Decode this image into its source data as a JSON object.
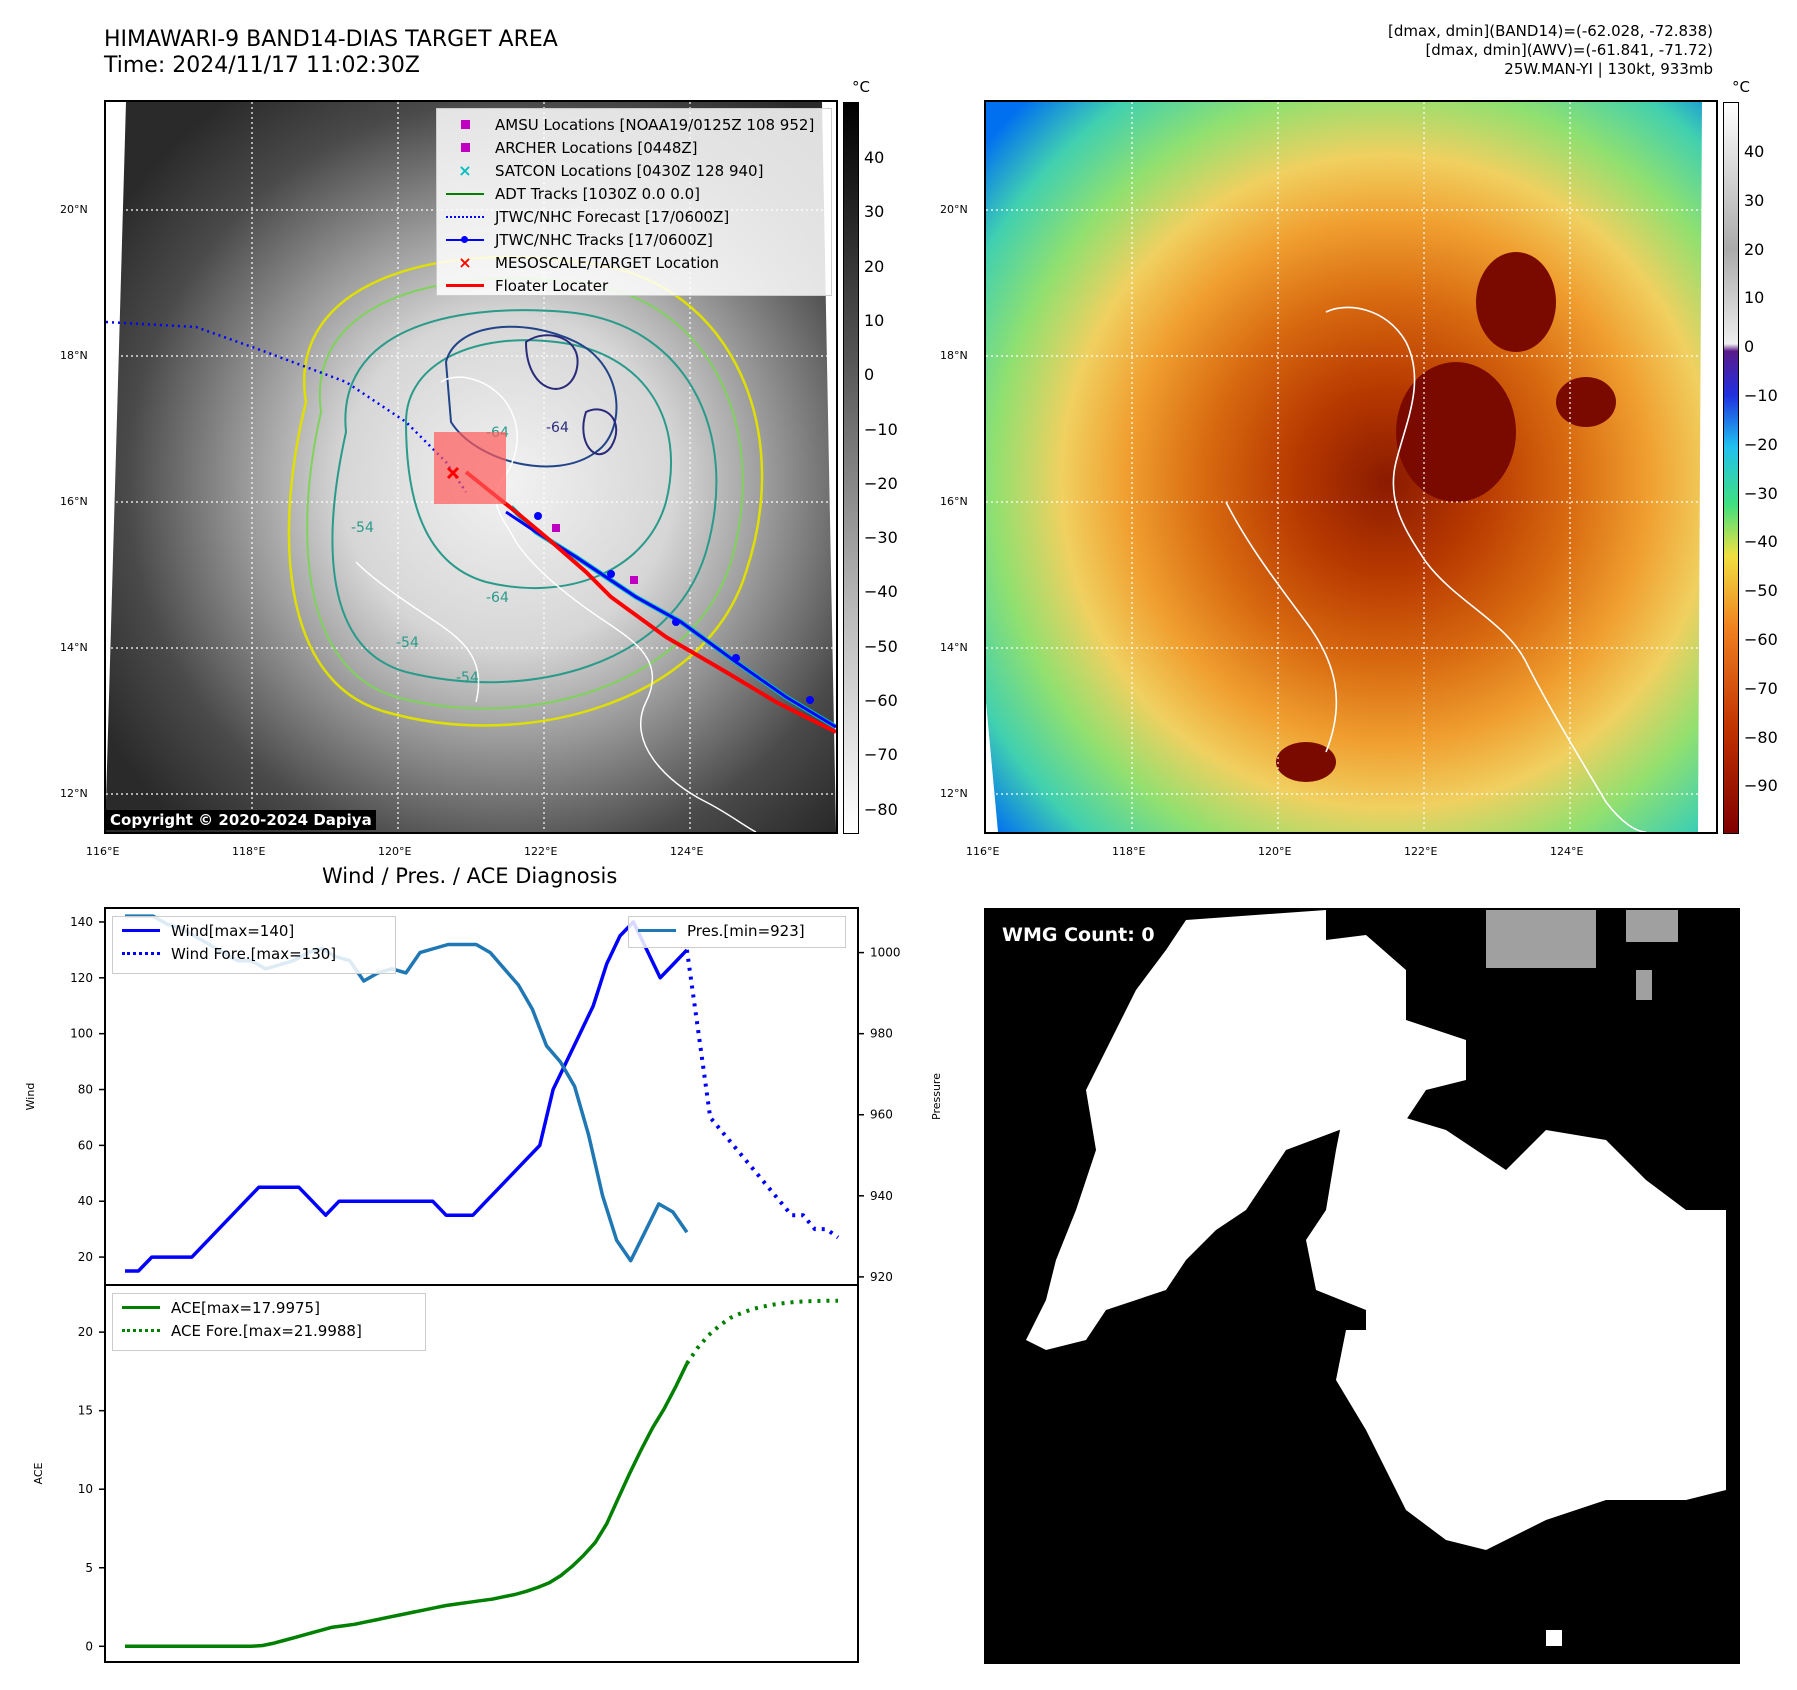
{
  "header": {
    "title_line1": "HIMAWARI-9 BAND14-DIAS TARGET AREA",
    "title_line2": "Time: 2024/11/17 11:02:30Z",
    "info_line1": "[dmax, dmin](BAND14)=(-62.028, -72.838)",
    "info_line2": "[dmax, dmin](AWV)=(-61.841, -71.72)",
    "info_line3": "25W.MAN-YI | 130kt, 933mb"
  },
  "map": {
    "lon_ticks": [
      "116°E",
      "118°E",
      "120°E",
      "122°E",
      "124°E"
    ],
    "lat_ticks": [
      "20°N",
      "18°N",
      "16°N",
      "14°N",
      "12°N"
    ],
    "contour_labels": [
      "-64",
      "-54",
      "-54",
      "-64",
      "-54",
      "-64"
    ],
    "copyright": "Copyright © 2020-2024 Dapiya",
    "colorbar_unit": "°C",
    "colorbar_ticks_left": [
      "40",
      "30",
      "20",
      "10",
      "0",
      "−10",
      "−20",
      "−30",
      "−40",
      "−50",
      "−60",
      "−70",
      "−80"
    ],
    "colorbar_ticks_right": [
      "40",
      "30",
      "20",
      "10",
      "0",
      "−10",
      "−20",
      "−30",
      "−40",
      "−50",
      "−60",
      "−70",
      "−80",
      "−90"
    ],
    "legend": [
      {
        "label": "AMSU Locations [NOAA19/0125Z 108 952]",
        "symbol": "square",
        "color": "#c000c0"
      },
      {
        "label": "ARCHER Locations [0448Z]",
        "symbol": "square",
        "color": "#c000c0"
      },
      {
        "label": "SATCON Locations [0430Z 128 940]",
        "symbol": "x",
        "color": "#00bfbf"
      },
      {
        "label": "ADT Tracks [1030Z 0.0 0.0]",
        "symbol": "line",
        "color": "#008000"
      },
      {
        "label": "JTWC/NHC Forecast [17/0600Z]",
        "symbol": "dotted",
        "color": "#0000ff"
      },
      {
        "label": "JTWC/NHC Tracks [17/0600Z]",
        "symbol": "linedot",
        "color": "#0000ff"
      },
      {
        "label": "MESOSCALE/TARGET Location",
        "symbol": "x",
        "color": "#ff0000"
      },
      {
        "label": "Floater Locater",
        "symbol": "line",
        "color": "#ff0000"
      }
    ]
  },
  "chart_data": [
    {
      "type": "line",
      "title": "Wind / Pres. / ACE Diagnosis",
      "ylabel": "Wind",
      "y2label": "Pressure",
      "ylim": [
        10,
        145
      ],
      "y2lim": [
        918,
        1011
      ],
      "yticks": [
        20,
        40,
        60,
        80,
        100,
        120,
        140
      ],
      "y2ticks": [
        920,
        940,
        960,
        980,
        1000
      ],
      "series": [
        {
          "name": "Wind[max=140]",
          "color": "#0000ff",
          "style": "solid",
          "values": [
            15,
            15,
            20,
            20,
            20,
            20,
            25,
            30,
            35,
            40,
            45,
            45,
            45,
            45,
            40,
            35,
            40,
            40,
            40,
            40,
            40,
            40,
            40,
            40,
            35,
            35,
            35,
            40,
            45,
            50,
            55,
            60,
            80,
            90,
            100,
            110,
            125,
            135,
            140,
            130,
            120,
            125,
            130
          ]
        },
        {
          "name": "Wind Fore.[max=130]",
          "color": "#0000ff",
          "style": "dotted",
          "values": [
            130,
            100,
            70,
            65,
            60,
            55,
            50,
            45,
            40,
            35,
            35,
            30,
            30,
            27
          ]
        },
        {
          "name": "Pres.[min=923]",
          "color": "#1f77b4",
          "style": "solid",
          "values": [
            1009,
            1009,
            1009,
            1007,
            1006,
            1004,
            1002,
            1000,
            998,
            998,
            996,
            997,
            998,
            1000,
            1001,
            999,
            998,
            993,
            995,
            996,
            995,
            1000,
            1001,
            1002,
            1002,
            1002,
            1000,
            996,
            992,
            986,
            977,
            973,
            967,
            955,
            940,
            929,
            924,
            931,
            938,
            936,
            931
          ]
        }
      ]
    },
    {
      "type": "line",
      "ylabel": "ACE",
      "ylim": [
        -1,
        23
      ],
      "yticks": [
        0,
        5,
        10,
        15,
        20
      ],
      "series": [
        {
          "name": "ACE[max=17.9975]",
          "color": "#008000",
          "style": "solid",
          "values": [
            0,
            0,
            0,
            0,
            0,
            0,
            0,
            0,
            0,
            0,
            0,
            0,
            0.05,
            0.2,
            0.4,
            0.6,
            0.8,
            1.0,
            1.2,
            1.3,
            1.4,
            1.55,
            1.7,
            1.85,
            2.0,
            2.15,
            2.3,
            2.45,
            2.6,
            2.7,
            2.8,
            2.9,
            3.0,
            3.15,
            3.3,
            3.5,
            3.75,
            4.05,
            4.5,
            5.1,
            5.8,
            6.6,
            7.8,
            9.4,
            11.0,
            12.5,
            13.9,
            15.1,
            16.5,
            18.0
          ]
        },
        {
          "name": "ACE Fore.[max=21.9988]",
          "color": "#008000",
          "style": "dotted",
          "values": [
            18.0,
            19.0,
            19.8,
            20.4,
            20.9,
            21.2,
            21.45,
            21.62,
            21.75,
            21.85,
            21.92,
            21.96,
            21.98,
            22.0,
            22.0
          ]
        }
      ]
    }
  ],
  "wmg": {
    "label": "WMG Count: 0"
  },
  "colors": {
    "frame": "#000000",
    "wind": "#0000ff",
    "pressure": "#1f77b4",
    "ace": "#008000"
  }
}
